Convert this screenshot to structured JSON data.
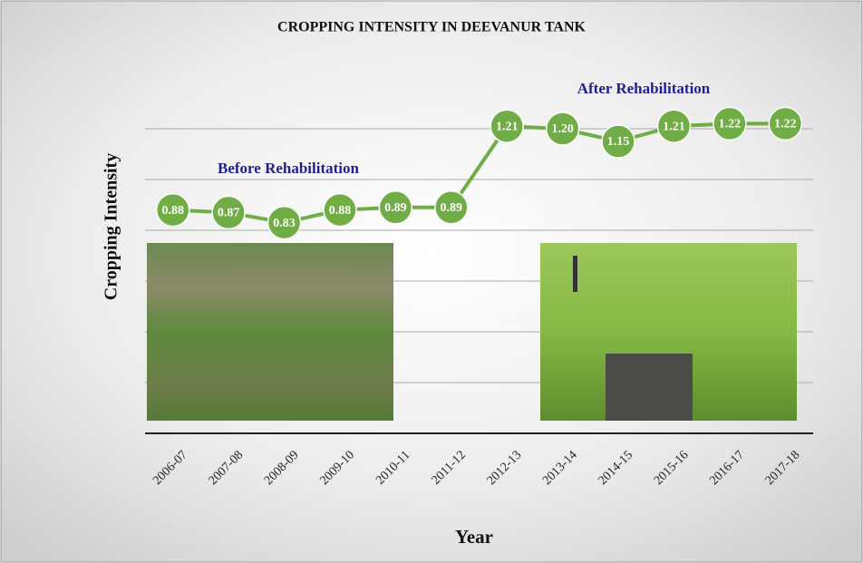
{
  "chart_data": {
    "type": "line",
    "title": "CROPPING  INTENSITY  IN DEEVANUR  TANK",
    "x_label": "Year",
    "y_label": "Cropping  Intensity",
    "annotations": [
      "Before Rehabilitation",
      "After Rehabilitation"
    ],
    "categories": [
      "2006-07",
      "2007-08",
      "2008-09",
      "2009-10",
      "2010-11",
      "2011-12",
      "2012-13",
      "2013-14",
      "2014-15",
      "2015-16",
      "2016-17",
      "2017-18"
    ],
    "series": [
      {
        "color": "#70ad47",
        "values": [
          0.88,
          0.87,
          0.83,
          0.88,
          0.89,
          0.89,
          1.21,
          1.2,
          1.15,
          1.21,
          1.22,
          1.22
        ],
        "value_labels": [
          "0.88",
          "0.87",
          "0.83",
          "0.88",
          "0.89",
          "0.89",
          "1.21",
          "1.20",
          "1.15",
          "1.21",
          "1.22",
          "1.22"
        ]
      }
    ],
    "ylim": [
      0,
      1.4
    ],
    "yticks": [
      0,
      0.2,
      0.4,
      0.6,
      0.8,
      1,
      1.2
    ],
    "ytick_labels": false,
    "grid": true
  }
}
